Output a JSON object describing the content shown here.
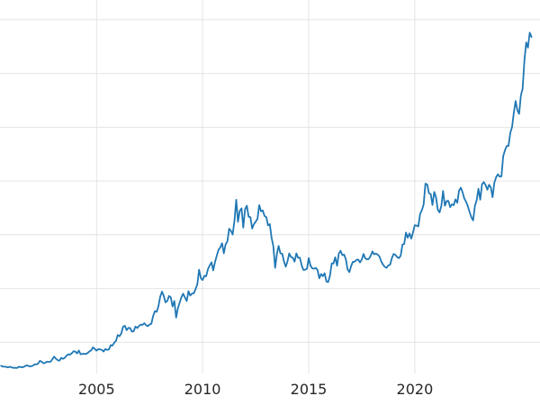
{
  "chart_data": {
    "type": "line",
    "title": "",
    "xlabel": "",
    "ylabel": "",
    "x_tick_labels": [
      "2005",
      "2010",
      "2015",
      "2020"
    ],
    "x_ticks": [
      2005,
      2010,
      2015,
      2020
    ],
    "y_tick_labels_visible": false,
    "xlim": [
      2000.45,
      2025.9
    ],
    "ylim": [
      0,
      3600
    ],
    "y_gridline_step": 500,
    "grid": true,
    "legend": "none",
    "line_color": "#1f77b4",
    "grid_color": "#e4e4e4",
    "background_color": "#ffffff",
    "series": [
      {
        "name": "price",
        "x_start": 2000.5,
        "x_step_years": 0.0833333,
        "values": [
          281,
          274,
          273,
          270,
          266,
          272,
          266,
          262,
          263,
          260,
          272,
          270,
          267,
          272,
          283,
          283,
          276,
          276,
          282,
          295,
          294,
          302,
          327,
          318,
          304,
          310,
          319,
          317,
          319,
          342,
          367,
          347,
          334,
          328,
          355,
          346,
          354,
          375,
          388,
          384,
          398,
          416,
          414,
          396,
          423,
          388,
          393,
          392,
          391,
          400,
          415,
          425,
          453,
          438,
          422,
          435,
          434,
          429,
          414,
          437,
          429,
          433,
          473,
          470,
          495,
          513,
          568,
          556,
          582,
          644,
          653,
          613,
          634,
          632,
          599,
          603,
          646,
          632,
          651,
          664,
          661,
          677,
          659,
          650,
          665,
          672,
          743,
          789,
          783,
          833,
          923,
          971,
          933,
          871,
          885,
          930,
          918,
          833,
          884,
          730,
          814,
          869,
          919,
          952,
          916,
          883,
          975,
          934,
          953,
          955,
          995,
          1040,
          1175,
          1096,
          1078,
          1118,
          1115,
          1179,
          1215,
          1244,
          1169,
          1246,
          1307,
          1359,
          1383,
          1421,
          1327,
          1411,
          1439,
          1556,
          1536,
          1502,
          1628,
          1826,
          1620,
          1722,
          1746,
          1566,
          1738,
          1770,
          1668,
          1664,
          1558,
          1598,
          1622,
          1648,
          1776,
          1719,
          1726,
          1675,
          1664,
          1588,
          1598,
          1469,
          1394,
          1192,
          1323,
          1396,
          1327,
          1323,
          1253,
          1202,
          1251,
          1326,
          1291,
          1288,
          1250,
          1327,
          1285,
          1287,
          1216,
          1173,
          1175,
          1184,
          1283,
          1213,
          1187,
          1184,
          1191,
          1172,
          1095,
          1135,
          1114,
          1142,
          1065,
          1060,
          1118,
          1234,
          1232,
          1290,
          1212,
          1322,
          1351,
          1309,
          1316,
          1272,
          1178,
          1152,
          1210,
          1248,
          1249,
          1266,
          1269,
          1242,
          1269,
          1321,
          1280,
          1271,
          1275,
          1303,
          1345,
          1318,
          1325,
          1315,
          1298,
          1252,
          1223,
          1201,
          1192,
          1215,
          1220,
          1282,
          1321,
          1313,
          1292,
          1283,
          1305,
          1409,
          1414,
          1520,
          1472,
          1513,
          1464,
          1523,
          1589,
          1586,
          1577,
          1694,
          1730,
          1781,
          1976,
          1967,
          1886,
          1879,
          1777,
          1898,
          1848,
          1734,
          1708,
          1768,
          1907,
          1770,
          1814,
          1814,
          1757,
          1783,
          1775,
          1829,
          1797,
          1909,
          1937,
          1897,
          1837,
          1807,
          1766,
          1711,
          1661,
          1633,
          1769,
          1824,
          1928,
          1827,
          1969,
          1990,
          1963,
          1919,
          1965,
          1940,
          1849,
          1984,
          2036,
          2063,
          2040,
          2044,
          2230,
          2286,
          2327,
          2327,
          2448,
          2503,
          2635,
          2744,
          2657,
          2625,
          2798,
          2858,
          3124,
          3289,
          3240,
          3380,
          3340
        ]
      }
    ]
  }
}
